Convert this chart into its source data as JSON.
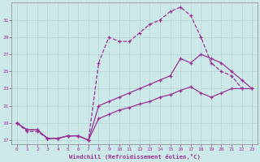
{
  "xlabel": "Windchill (Refroidissement éolien,°C)",
  "bg_color": "#cce8e8",
  "grid_color": "#aacccc",
  "line_color": "#993399",
  "ylim": [
    16.5,
    33.0
  ],
  "xlim": [
    -0.5,
    23.5
  ],
  "yticks": [
    17,
    19,
    21,
    23,
    25,
    27,
    29,
    31
  ],
  "xticks": [
    0,
    1,
    2,
    3,
    4,
    5,
    6,
    7,
    8,
    9,
    10,
    11,
    12,
    13,
    14,
    15,
    16,
    17,
    18,
    19,
    20,
    21,
    22,
    23
  ],
  "line1_x": [
    0,
    1,
    2,
    3,
    4,
    5,
    6,
    7,
    8,
    9,
    10,
    11,
    12,
    13,
    14,
    15,
    16,
    17,
    18,
    19,
    20,
    21,
    22
  ],
  "line1_y": [
    19.0,
    18.0,
    18.0,
    17.2,
    17.2,
    17.5,
    17.5,
    17.0,
    26.0,
    29.0,
    28.5,
    28.5,
    29.5,
    30.5,
    31.0,
    32.0,
    32.5,
    31.5,
    29.0,
    26.0,
    25.0,
    24.5,
    23.0
  ],
  "line1_style": "--",
  "line2_x": [
    0,
    1,
    2,
    3,
    4,
    5,
    6,
    7,
    8,
    9,
    10,
    11,
    12,
    13,
    14,
    15,
    16,
    17,
    18,
    19,
    20,
    21,
    22,
    23
  ],
  "line2_y": [
    19.0,
    18.2,
    18.2,
    17.2,
    17.2,
    17.5,
    17.5,
    17.0,
    21.0,
    21.5,
    22.0,
    22.5,
    23.0,
    23.5,
    24.0,
    24.5,
    26.5,
    26.0,
    27.0,
    26.5,
    26.0,
    25.0,
    24.0,
    23.0
  ],
  "line2_style": "-",
  "line3_x": [
    0,
    1,
    2,
    3,
    4,
    5,
    6,
    7,
    8,
    9,
    10,
    11,
    12,
    13,
    14,
    15,
    16,
    17,
    18,
    19,
    20,
    21,
    22,
    23
  ],
  "line3_y": [
    19.0,
    18.2,
    18.2,
    17.2,
    17.2,
    17.5,
    17.5,
    17.0,
    19.5,
    20.0,
    20.5,
    20.8,
    21.2,
    21.5,
    22.0,
    22.3,
    22.8,
    23.2,
    22.5,
    22.0,
    22.5,
    23.0,
    23.0,
    23.0
  ],
  "line3_style": "-"
}
